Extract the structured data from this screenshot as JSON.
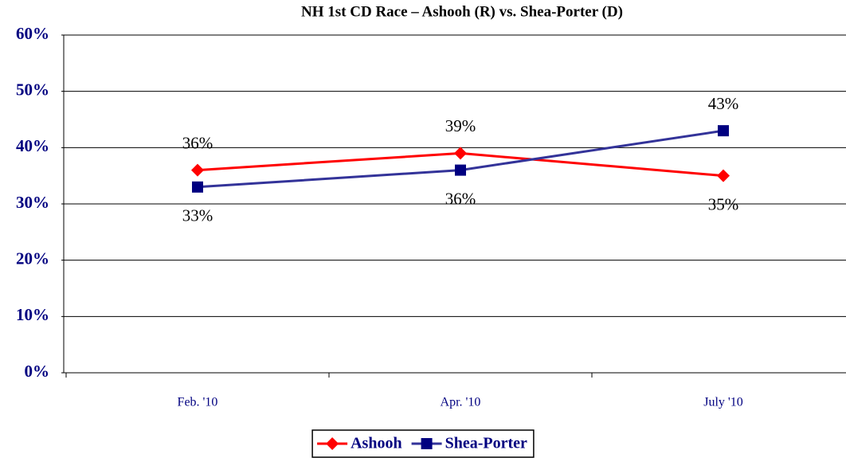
{
  "chart_data": {
    "type": "line",
    "title": "NH 1st CD Race – Ashooh (R) vs. Shea-Porter (D)",
    "categories": [
      "Feb. '10",
      "Apr. '10",
      "July '10"
    ],
    "series": [
      {
        "name": "Ashooh",
        "color": "#ff0000",
        "marker": "diamond",
        "values": [
          36,
          39,
          35
        ],
        "value_labels": [
          "36%",
          "39%",
          "35%"
        ]
      },
      {
        "name": "Shea-Porter",
        "color": "#333399",
        "marker": "square",
        "values": [
          33,
          36,
          43
        ],
        "value_labels": [
          "33%",
          "36%",
          "43%"
        ]
      }
    ],
    "ylim": [
      0,
      60
    ],
    "yticks": [
      {
        "value": 0,
        "label": "0%"
      },
      {
        "value": 10,
        "label": "10%"
      },
      {
        "value": 20,
        "label": "20%"
      },
      {
        "value": 30,
        "label": "30%"
      },
      {
        "value": 40,
        "label": "40%"
      },
      {
        "value": 50,
        "label": "50%"
      },
      {
        "value": 60,
        "label": "60%"
      }
    ],
    "grid": true,
    "legend": "bottom"
  }
}
